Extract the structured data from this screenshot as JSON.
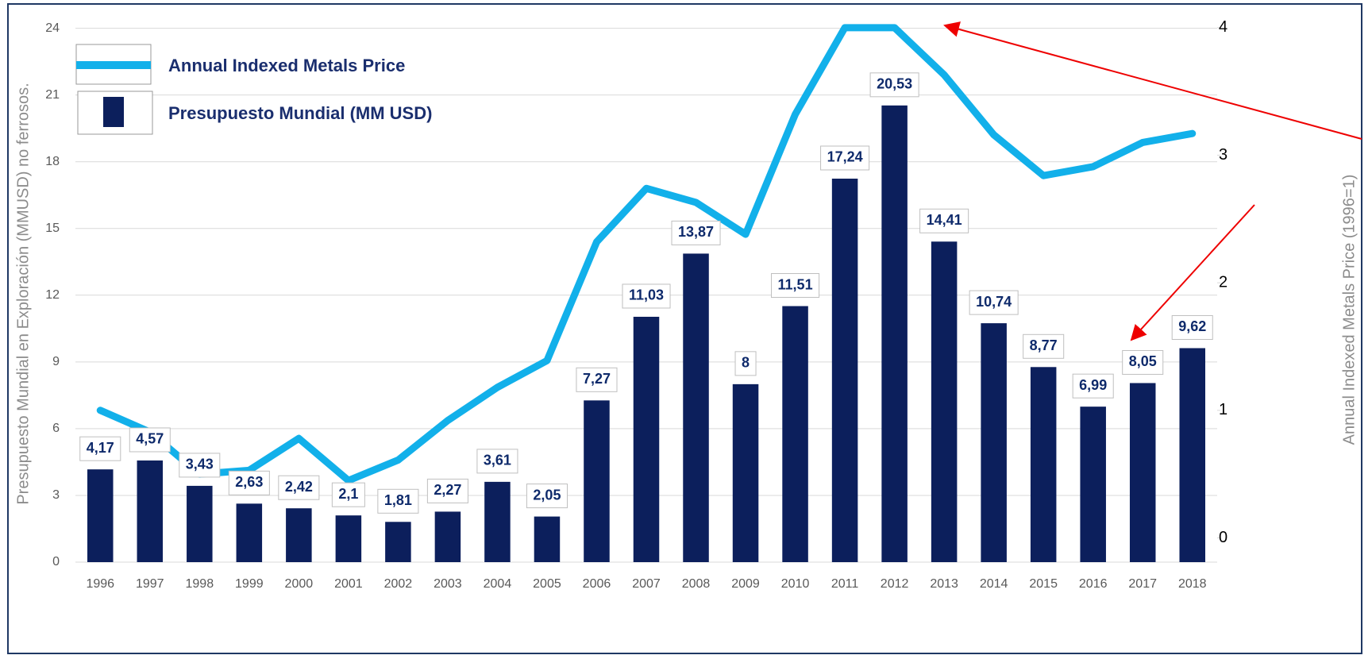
{
  "chart_data": {
    "type": "bar_line",
    "categories": [
      "1996",
      "1997",
      "1998",
      "1999",
      "2000",
      "2001",
      "2002",
      "2003",
      "2004",
      "2005",
      "2006",
      "2007",
      "2008",
      "2009",
      "2010",
      "2011",
      "2012",
      "2013",
      "2014",
      "2015",
      "2016",
      "2017",
      "2018"
    ],
    "series": [
      {
        "name": "Presupuesto Mundial (MM USD)",
        "type": "bar",
        "color": "#0c1f5c",
        "values": [
          4.17,
          4.57,
          3.43,
          2.63,
          2.42,
          2.1,
          1.81,
          2.27,
          3.61,
          2.05,
          7.27,
          11.03,
          13.87,
          8,
          11.51,
          17.24,
          20.53,
          14.41,
          10.74,
          8.77,
          6.99,
          8.05,
          9.62
        ],
        "value_labels": [
          "4,17",
          "4,57",
          "3,43",
          "2,63",
          "2,42",
          "2,1",
          "1,81",
          "2,27",
          "3,61",
          "2,05",
          "7,27",
          "11,03",
          "13,87",
          "8",
          "11,51",
          "17,24",
          "20,53",
          "14,41",
          "10,74",
          "8,77",
          "6,99",
          "8,05",
          "9,62"
        ]
      },
      {
        "name": "Annual Indexed Metals Price",
        "type": "line",
        "color": "#12b0ea",
        "axis": "y2",
        "values": [
          1.0,
          0.83,
          0.5,
          0.53,
          0.78,
          0.45,
          0.61,
          0.92,
          1.18,
          1.39,
          2.32,
          2.74,
          2.63,
          2.38,
          3.32,
          4.0,
          4.0,
          3.63,
          3.16,
          2.84,
          2.91,
          3.1,
          3.17
        ]
      }
    ],
    "y_label": "Presupuesto Mundial en Exploración (MMUSD) no ferrosos.",
    "y2_label": "Annual Indexed Metals Price (1996=1)",
    "ylim": [
      0,
      24.2
    ],
    "yticks": [
      0,
      3,
      6,
      9,
      12,
      15,
      18,
      21,
      24
    ],
    "y2lim": [
      -0.19,
      4.03
    ],
    "y2ticks": [
      0,
      1,
      2,
      3,
      4
    ],
    "grid": true
  }
}
